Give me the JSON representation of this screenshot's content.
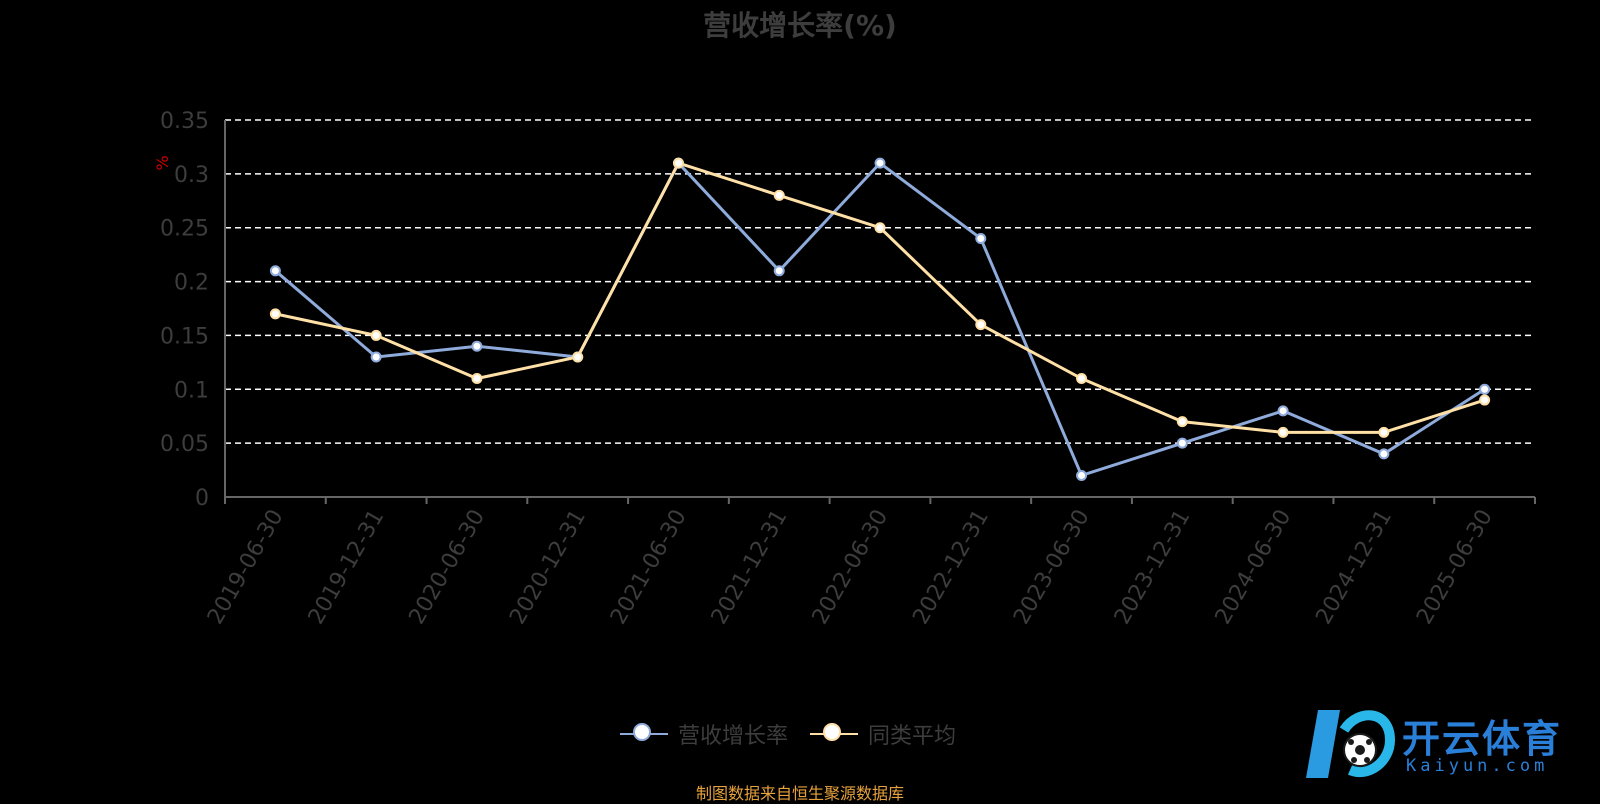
{
  "title": "营收增长率(%)",
  "source_note": "制图数据来自恒生聚源数据库",
  "watermark": {
    "brand": "开云体育",
    "domain": "Kaiyun.com"
  },
  "colors": {
    "series1": "#8fabdb",
    "series2": "#ffe0a6",
    "unit": "#d00000",
    "grid": "#ffffff",
    "axis": "#666666",
    "text": "#3d3d3d",
    "source": "#e6a23c",
    "logo": "#2a7fd8"
  },
  "chart_data": {
    "type": "line",
    "unit_label": "%",
    "categories": [
      "2019-06-30",
      "2019-12-31",
      "2020-06-30",
      "2020-12-31",
      "2021-06-30",
      "2021-12-31",
      "2022-06-30",
      "2022-12-31",
      "2023-06-30",
      "2023-12-31",
      "2024-06-30",
      "2024-12-31",
      "2025-06-30"
    ],
    "series": [
      {
        "name": "营收增长率",
        "values": [
          0.21,
          0.13,
          0.14,
          0.13,
          0.31,
          0.21,
          0.31,
          0.24,
          0.02,
          0.05,
          0.08,
          0.04,
          0.1
        ]
      },
      {
        "name": "同类平均",
        "values": [
          0.17,
          0.15,
          0.11,
          0.13,
          0.31,
          0.28,
          0.25,
          0.16,
          0.11,
          0.07,
          0.06,
          0.06,
          0.09
        ]
      }
    ],
    "yticks": [
      "0",
      "0.05",
      "0.1",
      "0.15",
      "0.2",
      "0.25",
      "0.3",
      "0.35"
    ],
    "ylim": [
      0,
      0.35
    ],
    "grid": true,
    "legend_position": "bottom-center"
  }
}
